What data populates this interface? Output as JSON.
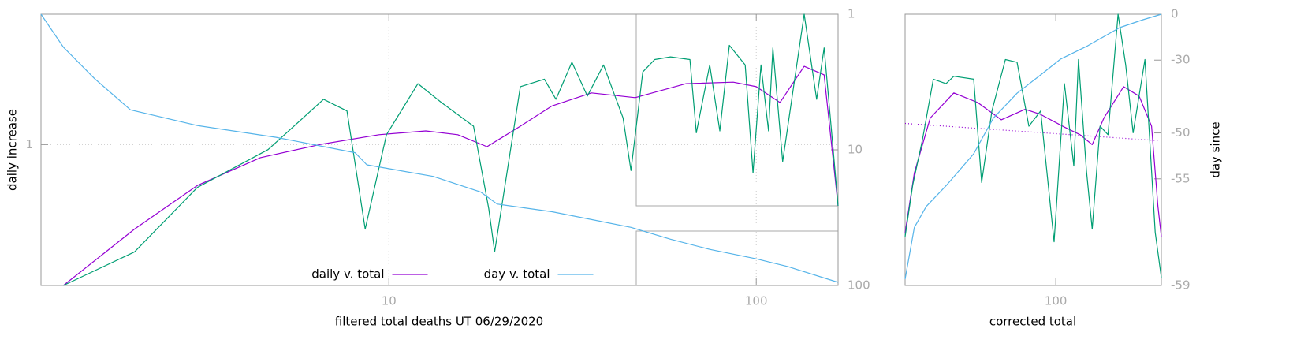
{
  "chart_data": [
    {
      "type": "line",
      "xlabel": "filtered total deaths UT 06/29/2020",
      "ylabel": "daily increase",
      "xlog": true,
      "ylog": true,
      "y2scale": "log",
      "grid": true,
      "legend": "bottom center",
      "xlim": [
        1.13,
        167
      ],
      "xticks": [
        10,
        100
      ],
      "ylim": [
        0.5,
        1.9
      ],
      "yticks": [
        1
      ],
      "y2lim": [
        100,
        1
      ],
      "y2ticks": [
        1,
        10,
        100
      ],
      "series": [
        {
          "name": "daily v. total",
          "color": "#9400d3",
          "x": [
            1.3,
            2.03,
            3.01,
            4.47,
            6.47,
            9.4,
            12.6,
            15.4,
            18.5,
            22.8,
            27.8,
            35.6,
            46.8,
            64.4,
            86.6,
            100,
            116,
            135,
            153,
            167
          ],
          "values": [
            0.5,
            0.66,
            0.818,
            0.938,
            1.0,
            1.05,
            1.07,
            1.05,
            0.99,
            1.095,
            1.21,
            1.29,
            1.26,
            1.35,
            1.36,
            1.33,
            1.23,
            1.47,
            1.41,
            0.74
          ]
        },
        {
          "color": "#009e73",
          "x": [
            1.3,
            2.03,
            3.01,
            4.69,
            6.64,
            7.69,
            8.62,
            9.85,
            12.0,
            13.9,
            17.0,
            18.7,
            19.4,
            22.8,
            26.5,
            28.5,
            31.5,
            34.7,
            38.4,
            43.4,
            45.6,
            49.1,
            52.9,
            58.4,
            66.0,
            68.7,
            74.7,
            79.6,
            84.5,
            93.3,
            98,
            103,
            108,
            111,
            118,
            135,
            146,
            153,
            163,
            167
          ],
          "values": [
            0.5,
            0.59,
            0.81,
            0.976,
            1.25,
            1.18,
            0.66,
            1.05,
            1.35,
            1.23,
            1.095,
            0.73,
            0.59,
            1.33,
            1.38,
            1.25,
            1.5,
            1.27,
            1.48,
            1.14,
            0.88,
            1.43,
            1.52,
            1.54,
            1.52,
            1.06,
            1.48,
            1.07,
            1.63,
            1.48,
            0.87,
            1.48,
            1.07,
            1.61,
            0.92,
            1.9,
            1.25,
            1.61,
            0.92,
            0.74
          ]
        },
        {
          "name": "day v. total",
          "color": "#56b4e9",
          "axis": "y2",
          "x": [
            1.13,
            1.3,
            1.58,
            1.98,
            3.01,
            4.93,
            8.09,
            8.71,
            13.2,
            17.8,
            19.7,
            27.8,
            45.6,
            58.4,
            74.7,
            100,
            122,
            167
          ],
          "values": [
            1,
            1.75,
            2.98,
            5.07,
            6.62,
            8.08,
            10.5,
            12.9,
            15.7,
            20.5,
            25.1,
            28.6,
            37.3,
            45.6,
            54.2,
            63.6,
            72.6,
            94.8
          ]
        }
      ]
    },
    {
      "type": "line",
      "xlabel": "corrected total",
      "y2label": "day since",
      "xlog": true,
      "ylog": true,
      "y2scale": "log-offset",
      "grid": false,
      "xlim": [
        40,
        190
      ],
      "xticks": [
        100
      ],
      "ylim": [
        0.5,
        1.9
      ],
      "yticks": [],
      "y2lim": [
        -59,
        0
      ],
      "y2ticks": [
        0,
        -30,
        -50,
        -55,
        -59
      ],
      "series": [
        {
          "color": "#9400d3",
          "x": [
            40,
            42.3,
            46.6,
            53.8,
            62.2,
            71.8,
            83,
            91.2,
            105.4,
            115.9,
            124.8,
            134,
            151,
            166,
            179,
            186,
            190
          ],
          "values": [
            0.648,
            0.87,
            1.14,
            1.29,
            1.23,
            1.13,
            1.19,
            1.16,
            1.09,
            1.05,
            1.0,
            1.14,
            1.33,
            1.27,
            1.095,
            0.74,
            0.636
          ]
        },
        {
          "color": "#9400d3",
          "style": "dotted",
          "x": [
            40,
            186
          ],
          "values": [
            1.11,
            1.02
          ]
        },
        {
          "color": "#009e73",
          "x": [
            40,
            41.9,
            44.4,
            47.5,
            51.3,
            53.8,
            60.7,
            63.7,
            67.8,
            73.6,
            79,
            84.9,
            91.2,
            99.0,
            105.4,
            111.6,
            114.8,
            120.5,
            124.8,
            130.9,
            137.4,
            146,
            153,
            160,
            172,
            183,
            190
          ],
          "values": [
            0.636,
            0.82,
            1.02,
            1.38,
            1.35,
            1.4,
            1.38,
            0.83,
            1.18,
            1.52,
            1.5,
            1.095,
            1.18,
            0.62,
            1.35,
            0.9,
            1.52,
            0.88,
            0.66,
            1.095,
            1.05,
            1.9,
            1.48,
            1.06,
            1.52,
            0.65,
            0.52
          ]
        },
        {
          "color": "#56b4e9",
          "axis": "y2",
          "x": [
            40,
            42.3,
            45.5,
            51.3,
            60.7,
            68.4,
            79,
            91.2,
            102.8,
            121.6,
            147.5,
            170,
            190
          ],
          "values": [
            -58.9,
            -57.6,
            -56.7,
            -55.5,
            -52.7,
            -47.5,
            -41.8,
            -36,
            -29.6,
            -22.7,
            -11,
            -4.8,
            0
          ]
        }
      ]
    }
  ]
}
